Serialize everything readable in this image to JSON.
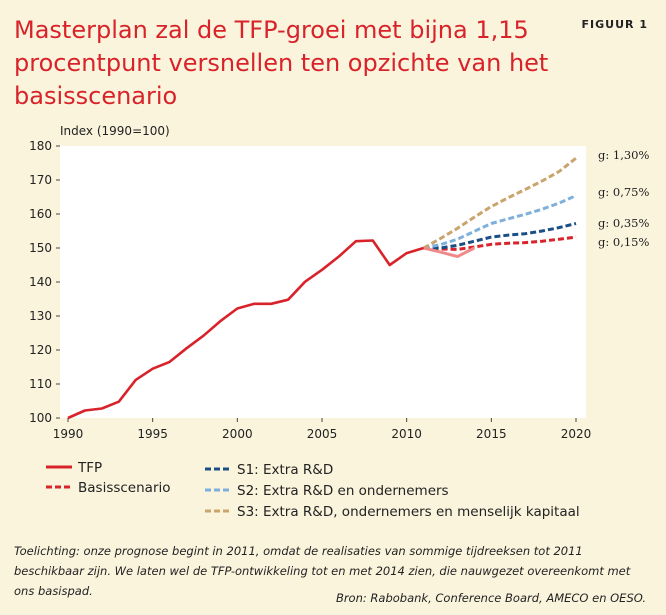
{
  "header": {
    "title": "Masterplan zal de TFP-groei met bijna 1,15 procentpunt versnellen ten opzichte van het basisscenario",
    "figure_label": "FIGUUR 1"
  },
  "chart_data": {
    "type": "line",
    "ylabel": "Index (1990=100)",
    "xlim": [
      1990,
      2020
    ],
    "ylim": [
      100,
      180
    ],
    "x_ticks": [
      "1990",
      "1995",
      "2000",
      "2005",
      "2010",
      "2015",
      "2020"
    ],
    "y_ticks": [
      "100",
      "110",
      "120",
      "130",
      "140",
      "150",
      "160",
      "170",
      "180"
    ],
    "grid": false,
    "legend_position": "bottom",
    "series": [
      {
        "name": "TFP",
        "style": "solid",
        "color": "#d8232a",
        "x": [
          1990,
          1991,
          1992,
          1993,
          1994,
          1995,
          1996,
          1997,
          1998,
          1999,
          2000,
          2001,
          2002,
          2003,
          2004,
          2005,
          2006,
          2007,
          2008,
          2009,
          2010,
          2011
        ],
        "y": [
          100,
          102.2,
          102.8,
          104.8,
          111.2,
          114.5,
          116.5,
          120.5,
          124.2,
          128.5,
          132.2,
          133.6,
          133.6,
          134.8,
          140.1,
          143.6,
          147.5,
          152.0,
          152.2,
          145.0,
          148.5,
          150.0
        ]
      },
      {
        "name": "TFP 2012-2014",
        "style": "solid-light",
        "color": "#f08a8a",
        "x": [
          2011,
          2012,
          2013,
          2014
        ],
        "y": [
          150.0,
          148.8,
          147.5,
          150.0
        ]
      },
      {
        "name": "Basisscenario",
        "style": "dashed",
        "color": "#d8232a",
        "x": [
          2011,
          2012,
          2013,
          2014,
          2015,
          2016,
          2017,
          2018,
          2019,
          2020
        ],
        "y": [
          150.0,
          149.7,
          149.6,
          150.3,
          151.1,
          151.4,
          151.6,
          152.0,
          152.6,
          153.2
        ],
        "end_label": "g: 0,15%"
      },
      {
        "name": "S1: Extra R&D",
        "style": "dashed",
        "color": "#1c4e86",
        "x": [
          2011,
          2012,
          2013,
          2014,
          2015,
          2016,
          2017,
          2018,
          2019,
          2020
        ],
        "y": [
          150.0,
          150.0,
          150.8,
          152.0,
          153.2,
          153.8,
          154.2,
          155.0,
          156.0,
          157.2
        ],
        "end_label": "g: 0,35%"
      },
      {
        "name": "S2: Extra R&D en ondernemers",
        "style": "dashed",
        "color": "#7eb0dc",
        "x": [
          2011,
          2012,
          2013,
          2014,
          2015,
          2016,
          2017,
          2018,
          2019,
          2020
        ],
        "y": [
          150.0,
          151.0,
          152.6,
          154.9,
          157.2,
          158.6,
          159.9,
          161.4,
          163.2,
          165.4
        ],
        "end_label": "g: 0,75%"
      },
      {
        "name": "S3: Extra R&D, ondernemers en menselijk kapitaal",
        "style": "dashed",
        "color": "#c9a46c",
        "x": [
          2011,
          2012,
          2013,
          2014,
          2015,
          2016,
          2017,
          2018,
          2019,
          2020
        ],
        "y": [
          150.0,
          152.8,
          155.8,
          159.1,
          162.2,
          164.8,
          167.2,
          169.7,
          172.5,
          176.4
        ],
        "end_label": "g: 1,30%"
      }
    ],
    "legend": [
      {
        "label": "TFP",
        "style": "solid",
        "color": "#d8232a"
      },
      {
        "label": "Basisscenario",
        "style": "dashed",
        "color": "#d8232a"
      },
      {
        "label": "S1: Extra R&D",
        "style": "dashed",
        "color": "#1c4e86"
      },
      {
        "label": "S2: Extra R&D en ondernemers",
        "style": "dashed",
        "color": "#7eb0dc"
      },
      {
        "label": "S3: Extra R&D, ondernemers en menselijk kapitaal",
        "style": "dashed",
        "color": "#c9a46c"
      }
    ]
  },
  "footer": {
    "note": "Toelichting: onze prognose begint in 2011, omdat de realisaties van sommige tijdreeksen tot 2011 beschikbaar zijn. We laten wel de TFP-ontwikkeling tot en met 2014 zien, die nauwgezet overeenkomt met ons basispad.",
    "source": "Bron: Rabobank, Conference Board, AMECO en OESO."
  },
  "colors": {
    "background": "#faf4dd",
    "plot_background": "#ffffff",
    "title": "#d8232a"
  }
}
